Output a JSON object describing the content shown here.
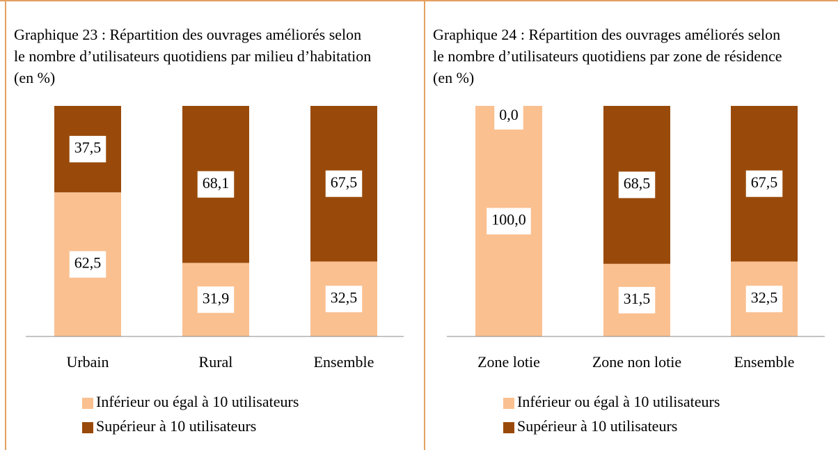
{
  "chart_data": [
    {
      "type": "bar",
      "stacked": true,
      "title": "Graphique 23 : Répartition des ouvrages améliorés selon le nombre d’utilisateurs quotidiens par milieu d’habitation (en %)",
      "categories": [
        "Urbain",
        "Rural",
        "Ensemble"
      ],
      "series": [
        {
          "name": "Inférieur ou égal à 10 utilisateurs",
          "color": "#fac090",
          "values": [
            62.5,
            31.9,
            32.5
          ],
          "value_labels": [
            "62,5",
            "31,9",
            "32,5"
          ]
        },
        {
          "name": "Supérieur à 10 utilisateurs",
          "color": "#994a0a",
          "values": [
            37.5,
            68.1,
            67.5
          ],
          "value_labels": [
            "37,5",
            "68,1",
            "67,5"
          ]
        }
      ]
    },
    {
      "type": "bar",
      "stacked": true,
      "title": "Graphique 24 : Répartition des ouvrages améliorés selon le nombre d’utilisateurs quotidiens par zone de résidence (en %)",
      "categories": [
        "Zone lotie",
        "Zone non lotie",
        "Ensemble"
      ],
      "series": [
        {
          "name": "Inférieur ou égal à 10 utilisateurs",
          "color": "#fac090",
          "values": [
            100.0,
            31.5,
            32.5
          ],
          "value_labels": [
            "100,0",
            "31,5",
            "32,5"
          ]
        },
        {
          "name": "Supérieur à 10 utilisateurs",
          "color": "#994a0a",
          "values": [
            0.0,
            68.5,
            67.5
          ],
          "value_labels": [
            "0,0",
            "68,5",
            "67,5"
          ]
        }
      ]
    }
  ]
}
